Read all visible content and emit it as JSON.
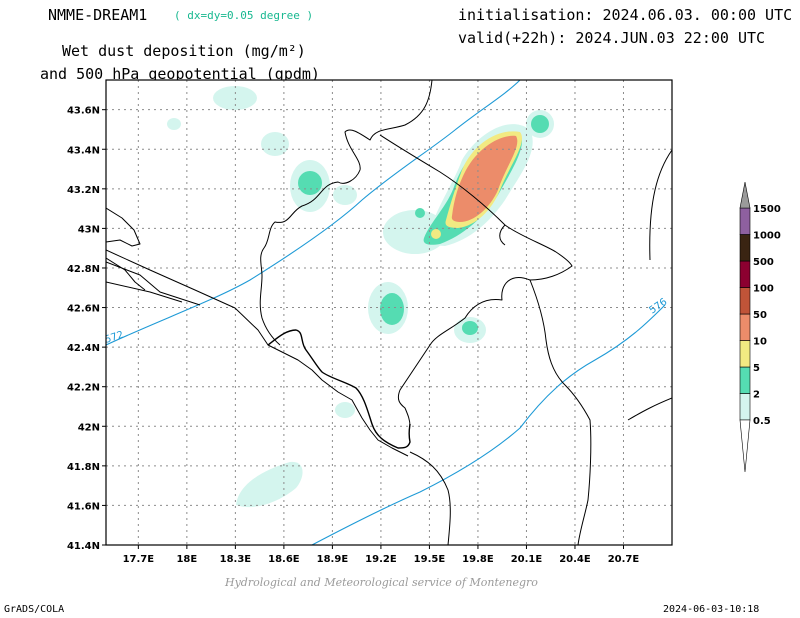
{
  "header": {
    "model": "NMME-DREAM1",
    "resolution": "( dx=dy=0.05 degree )",
    "initialisation": "initialisation: 2024.06.03. 00:00 UTC",
    "valid": "valid(+22h): 2024.JUN.03 22:00 UTC",
    "variable_line1": "Wet dust deposition (mg/m²)",
    "variable_line2": "and 500 hPa geopotential (gpdm)"
  },
  "footer": {
    "credit": "Hydrological and Meteorological service of Montenegro",
    "software": "GrADS/COLA",
    "timestamp": "2024-06-03-10:18"
  },
  "map": {
    "lon_range": [
      17.5,
      21.0
    ],
    "lat_range": [
      41.4,
      43.75
    ],
    "lon_ticks": [
      {
        "v": 17.7,
        "label": "17.7E"
      },
      {
        "v": 18.0,
        "label": "18E"
      },
      {
        "v": 18.3,
        "label": "18.3E"
      },
      {
        "v": 18.6,
        "label": "18.6E"
      },
      {
        "v": 18.9,
        "label": "18.9E"
      },
      {
        "v": 19.2,
        "label": "19.2E"
      },
      {
        "v": 19.5,
        "label": "19.5E"
      },
      {
        "v": 19.8,
        "label": "19.8E"
      },
      {
        "v": 20.1,
        "label": "20.1E"
      },
      {
        "v": 20.4,
        "label": "20.4E"
      },
      {
        "v": 20.7,
        "label": "20.7E"
      }
    ],
    "lat_ticks": [
      {
        "v": 41.4,
        "label": "41.4N"
      },
      {
        "v": 41.6,
        "label": "41.6N"
      },
      {
        "v": 41.8,
        "label": "41.8N"
      },
      {
        "v": 42.0,
        "label": "42N"
      },
      {
        "v": 42.2,
        "label": "42.2N"
      },
      {
        "v": 42.4,
        "label": "42.4N"
      },
      {
        "v": 42.6,
        "label": "42.6N"
      },
      {
        "v": 42.8,
        "label": "42.8N"
      },
      {
        "v": 43.0,
        "label": "43N"
      },
      {
        "v": 43.2,
        "label": "43.2N"
      },
      {
        "v": 43.4,
        "label": "43.4N"
      },
      {
        "v": 43.6,
        "label": "43.6N"
      }
    ],
    "contour_labels": [
      "572",
      "576"
    ],
    "contour_color": "#1e9ad6",
    "coast_color": "#000000"
  },
  "colorbar": {
    "levels": [
      {
        "label": "0.5",
        "color": "#d4f5ee"
      },
      {
        "label": "2",
        "color": "#55dcb2"
      },
      {
        "label": "5",
        "color": "#f2ea82"
      },
      {
        "label": "10",
        "color": "#ec8c6a"
      },
      {
        "label": "50",
        "color": "#c05438"
      },
      {
        "label": "100",
        "color": "#8c0030"
      },
      {
        "label": "500",
        "color": "#3a2412"
      },
      {
        "label": "1000",
        "color": "#8e60a0"
      },
      {
        "label": "1500",
        "color": "#9a9a9a"
      }
    ]
  }
}
